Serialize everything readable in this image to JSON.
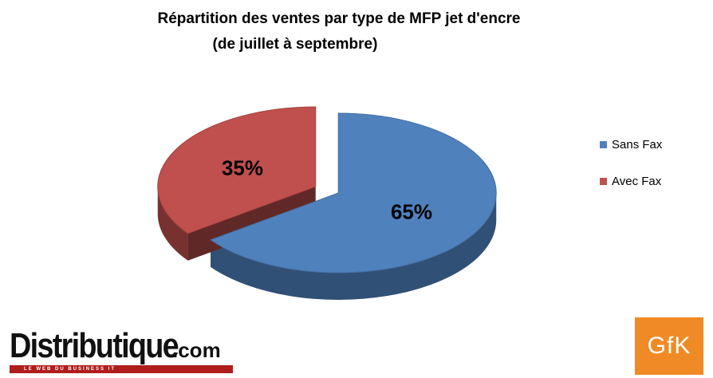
{
  "chart_data": {
    "type": "pie",
    "title": "Répartition des ventes par type de MFP jet d'encre",
    "subtitle": "(de juillet à septembre)",
    "slices": [
      {
        "label": "Sans Fax",
        "value": 65,
        "display": "65%",
        "color": "#4f81bd"
      },
      {
        "label": "Avec Fax",
        "value": 35,
        "display": "35%",
        "color": "#c0504d"
      }
    ],
    "legend_position": "right",
    "style": "3d-exploded"
  },
  "legend": {
    "items": [
      {
        "label": "Sans Fax",
        "color": "#4f81bd"
      },
      {
        "label": "Avec Fax",
        "color": "#c0504d"
      }
    ]
  },
  "branding": {
    "distributique": {
      "name": "Distributique",
      "suffix": ".com",
      "tagline": "LE WEB DU BUSINESS IT"
    },
    "gfk": {
      "name": "GfK",
      "color": "#f08a24"
    }
  }
}
